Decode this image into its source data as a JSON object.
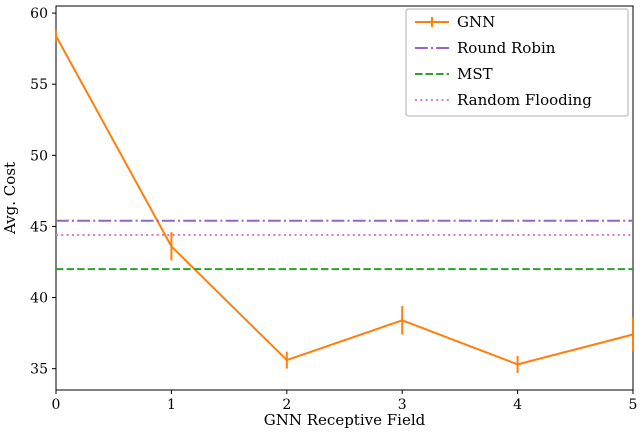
{
  "figure": {
    "background": "#ffffff",
    "frame_color": "#000000",
    "tick_color": "#000000",
    "legend_frame_color": "#b0b0b0",
    "legend_background": "#ffffff"
  },
  "chart_data": {
    "type": "line",
    "title": "",
    "xlabel": "GNN Receptive Field",
    "ylabel": "Avg. Cost",
    "xlim": [
      0,
      5
    ],
    "ylim": [
      33.5,
      60.5
    ],
    "xticks": [
      0,
      1,
      2,
      3,
      4,
      5
    ],
    "yticks": [
      35,
      40,
      45,
      50,
      55,
      60
    ],
    "grid": false,
    "legend": {
      "position": "upper right"
    },
    "series": [
      {
        "name": "GNN",
        "kind": "errorbar-line",
        "color": "#ff7f0e",
        "style": "solid",
        "x": [
          0,
          1,
          2,
          3,
          4,
          5
        ],
        "y": [
          58.4,
          43.6,
          35.6,
          38.4,
          35.3,
          37.4
        ],
        "yerr": [
          0.4,
          1.0,
          0.6,
          1.0,
          0.6,
          1.2
        ]
      },
      {
        "name": "Round Robin",
        "kind": "hline",
        "color": "#9467bd",
        "style": "dashdot",
        "y": 45.4
      },
      {
        "name": "MST",
        "kind": "hline",
        "color": "#2ca02c",
        "style": "dashed",
        "y": 42.0
      },
      {
        "name": "Random Flooding",
        "kind": "hline",
        "color": "#e377c2",
        "style": "dotted",
        "y": 44.4
      }
    ]
  }
}
